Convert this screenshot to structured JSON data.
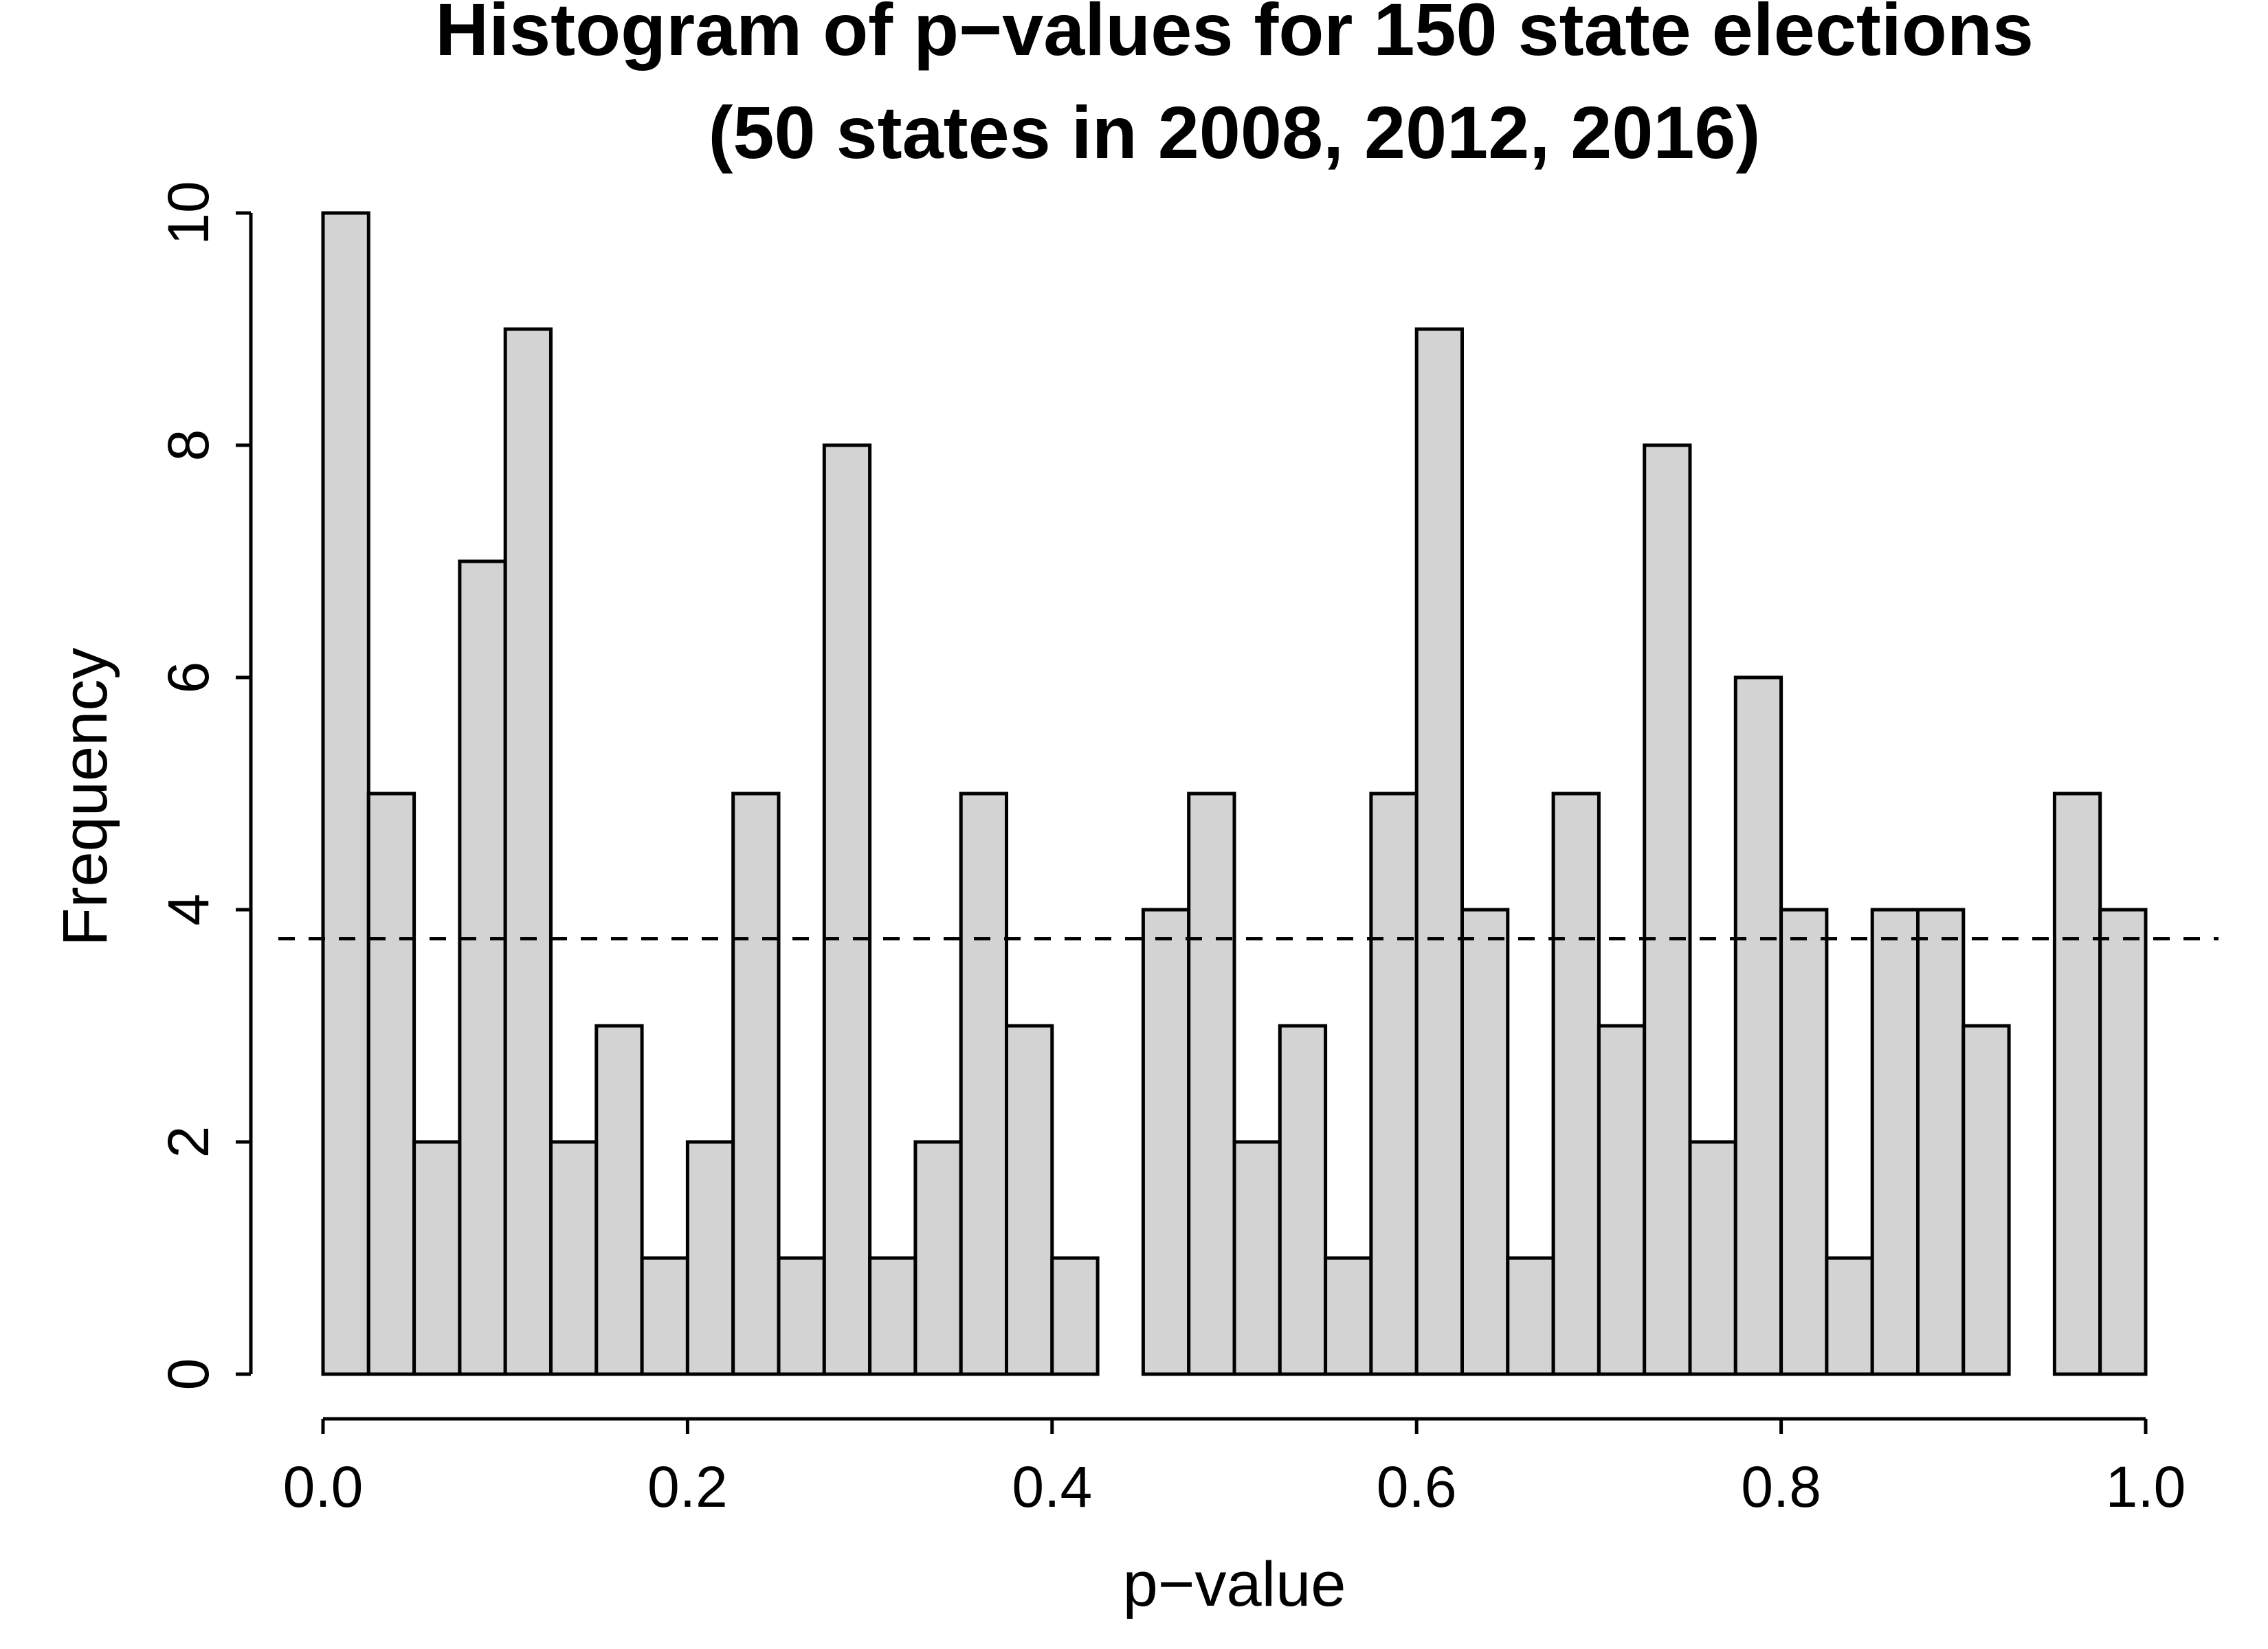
{
  "chart_data": {
    "type": "bar",
    "subtype": "histogram",
    "title": "Histogram of p−values for 150 state elections",
    "subtitle": "(50 states in 2008, 2012, 2016)",
    "xlabel": "p−value",
    "ylabel": "Frequency",
    "bin_width": 0.025,
    "bin_range": [
      0.0,
      1.0
    ],
    "bins": [
      0.0,
      0.025,
      0.05,
      0.075,
      0.1,
      0.125,
      0.15,
      0.175,
      0.2,
      0.225,
      0.25,
      0.275,
      0.3,
      0.325,
      0.35,
      0.375,
      0.4,
      0.425,
      0.45,
      0.475,
      0.5,
      0.525,
      0.55,
      0.575,
      0.6,
      0.625,
      0.65,
      0.675,
      0.7,
      0.725,
      0.75,
      0.775,
      0.8,
      0.825,
      0.85,
      0.875,
      0.9,
      0.925,
      0.95,
      0.975
    ],
    "values": [
      10,
      5,
      2,
      7,
      9,
      2,
      3,
      1,
      2,
      5,
      1,
      8,
      1,
      2,
      5,
      3,
      1,
      0,
      4,
      5,
      2,
      3,
      1,
      5,
      9,
      4,
      1,
      5,
      3,
      8,
      2,
      6,
      4,
      1,
      4,
      4,
      3,
      0,
      5,
      4
    ],
    "reference_line": {
      "y": 3.75,
      "style": "dashed"
    },
    "xlim": [
      0.0,
      1.0
    ],
    "ylim": [
      0,
      10
    ],
    "x_ticks": [
      0.0,
      0.2,
      0.4,
      0.6,
      0.8,
      1.0
    ],
    "x_tick_labels": [
      "0.0",
      "0.2",
      "0.4",
      "0.6",
      "0.8",
      "1.0"
    ],
    "y_ticks": [
      0,
      2,
      4,
      6,
      8,
      10
    ],
    "y_tick_labels": [
      "0",
      "2",
      "4",
      "6",
      "8",
      "10"
    ],
    "grid": false,
    "colors": {
      "bar_fill": "#d3d3d3",
      "bar_edge": "#000000",
      "background": "#ffffff"
    }
  }
}
